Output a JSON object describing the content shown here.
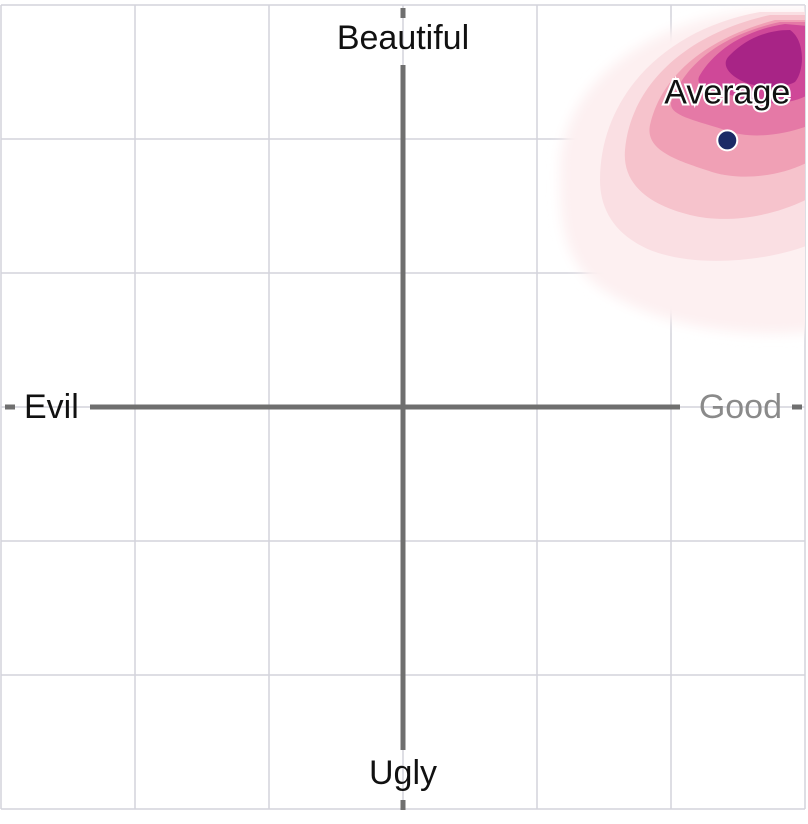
{
  "chart_data": {
    "type": "scatter",
    "axis_labels": {
      "top": "Beautiful",
      "bottom": "Ugly",
      "left": "Evil",
      "right": "Good"
    },
    "xlim": [
      -3,
      3
    ],
    "ylim": [
      -3,
      3
    ],
    "xticks": [
      -3,
      -2,
      -1,
      0,
      1,
      2,
      3
    ],
    "yticks": [
      -3,
      -2,
      -1,
      0,
      1,
      2,
      3
    ],
    "grid": true,
    "series": [
      {
        "name": "Average",
        "color": "#1b2a66",
        "x": [
          2.42
        ],
        "y": [
          1.99
        ]
      }
    ]
  }
}
